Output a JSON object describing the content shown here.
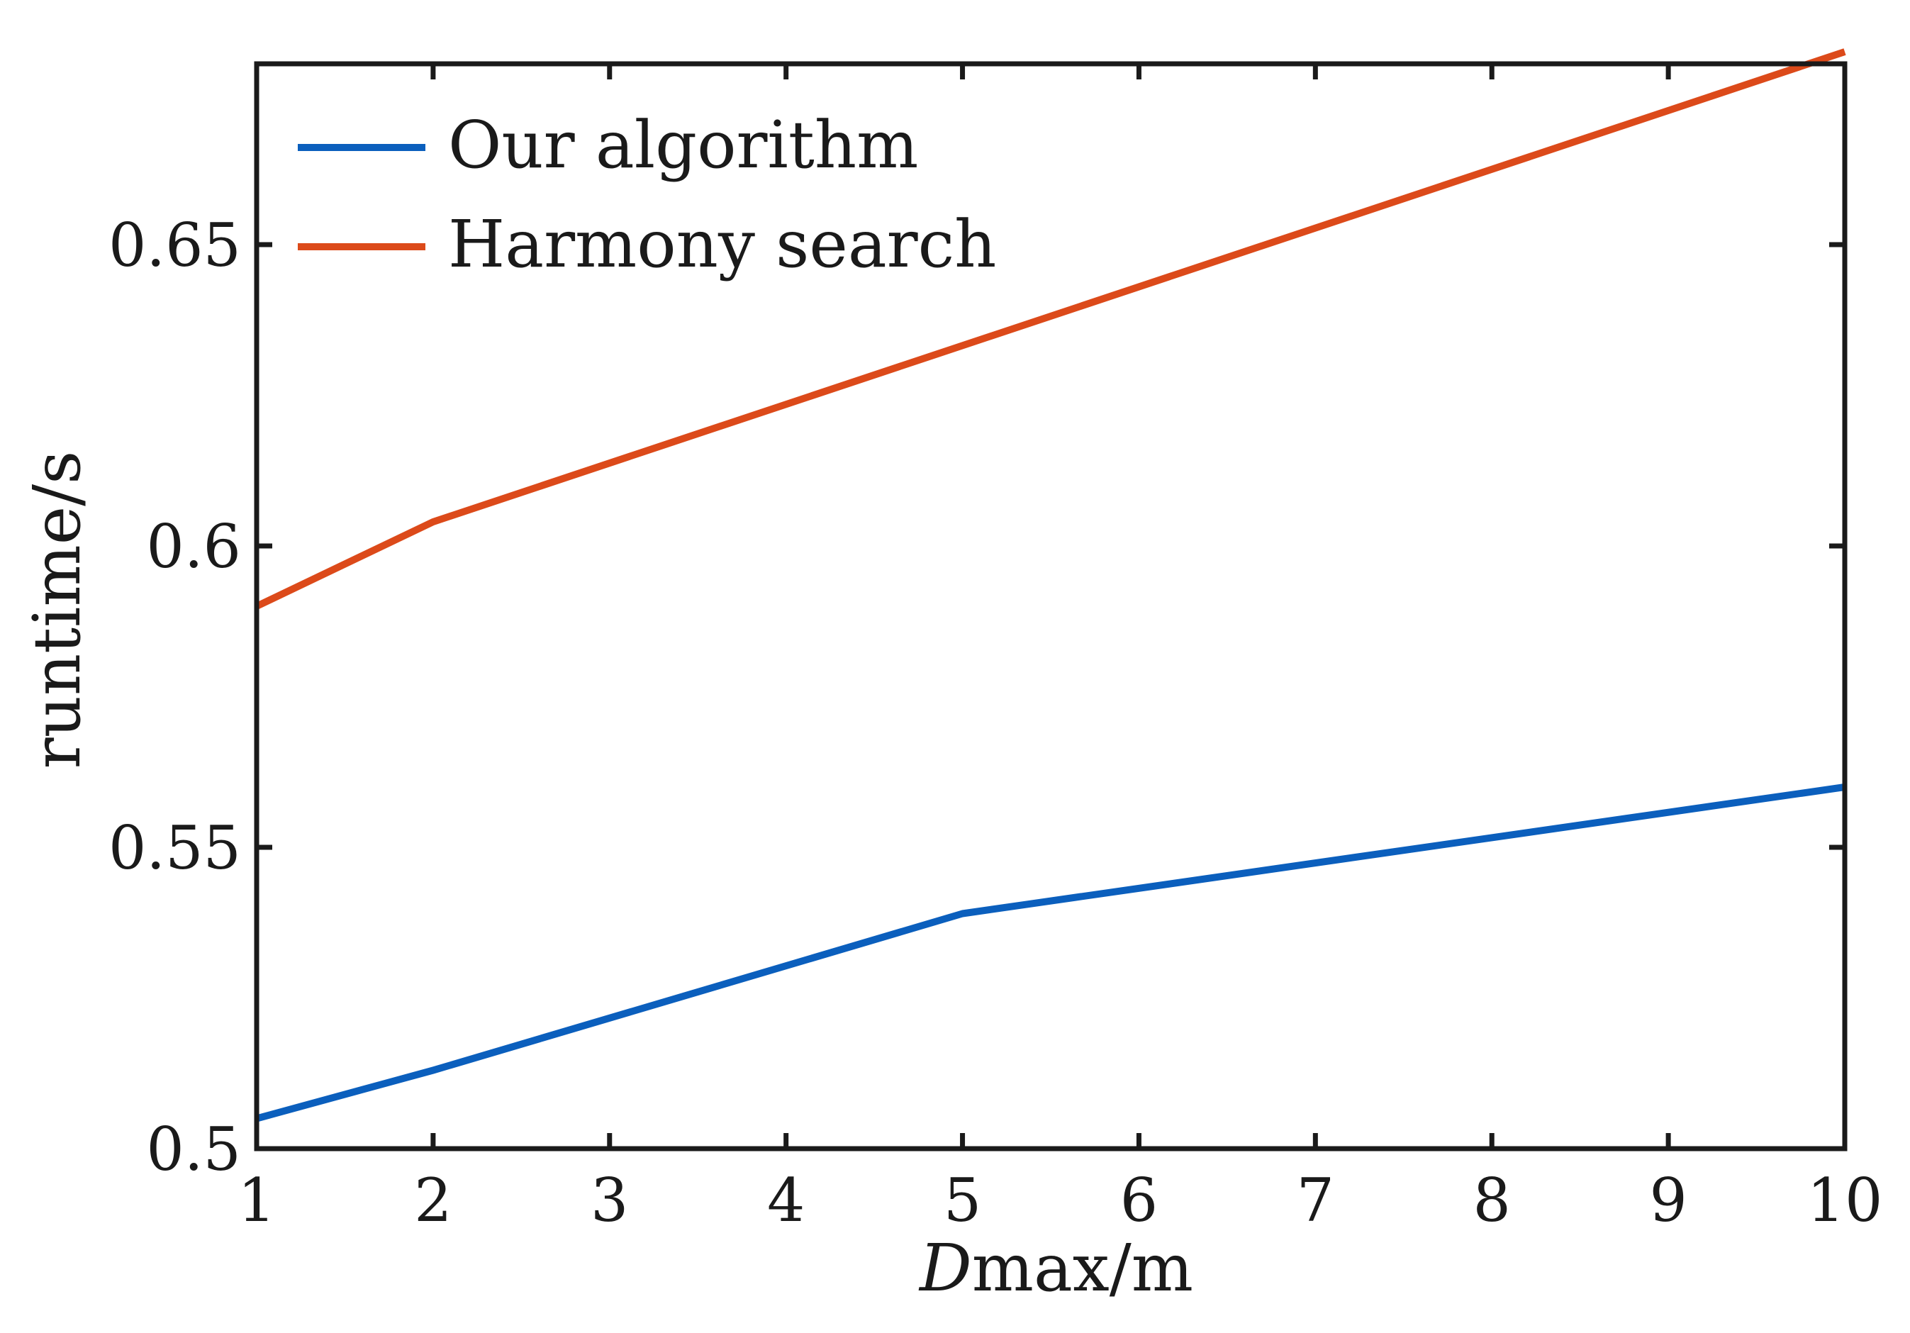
{
  "chart_data": {
    "type": "line",
    "xlabel_italic": "D",
    "xlabel_rest": "max/m",
    "ylabel": "runtime/s",
    "xlim": [
      1,
      10
    ],
    "ylim": [
      0.5,
      0.68
    ],
    "x_ticks": [
      1,
      2,
      3,
      4,
      5,
      6,
      7,
      8,
      9,
      10
    ],
    "y_ticks": [
      0.5,
      0.55,
      0.6,
      0.65
    ],
    "y_tick_labels": [
      "0.5",
      "0.55",
      "0.6",
      "0.65"
    ],
    "grid": false,
    "legend_position": "top-left",
    "series": [
      {
        "name": "Our algorithm",
        "color": "#0b5fbd",
        "x": [
          1,
          2,
          5,
          10
        ],
        "y": [
          0.505,
          0.513,
          0.539,
          0.56
        ]
      },
      {
        "name": "Harmony search",
        "color": "#dc4a1a",
        "x": [
          1,
          2,
          10
        ],
        "y": [
          0.59,
          0.604,
          0.682
        ]
      }
    ]
  }
}
